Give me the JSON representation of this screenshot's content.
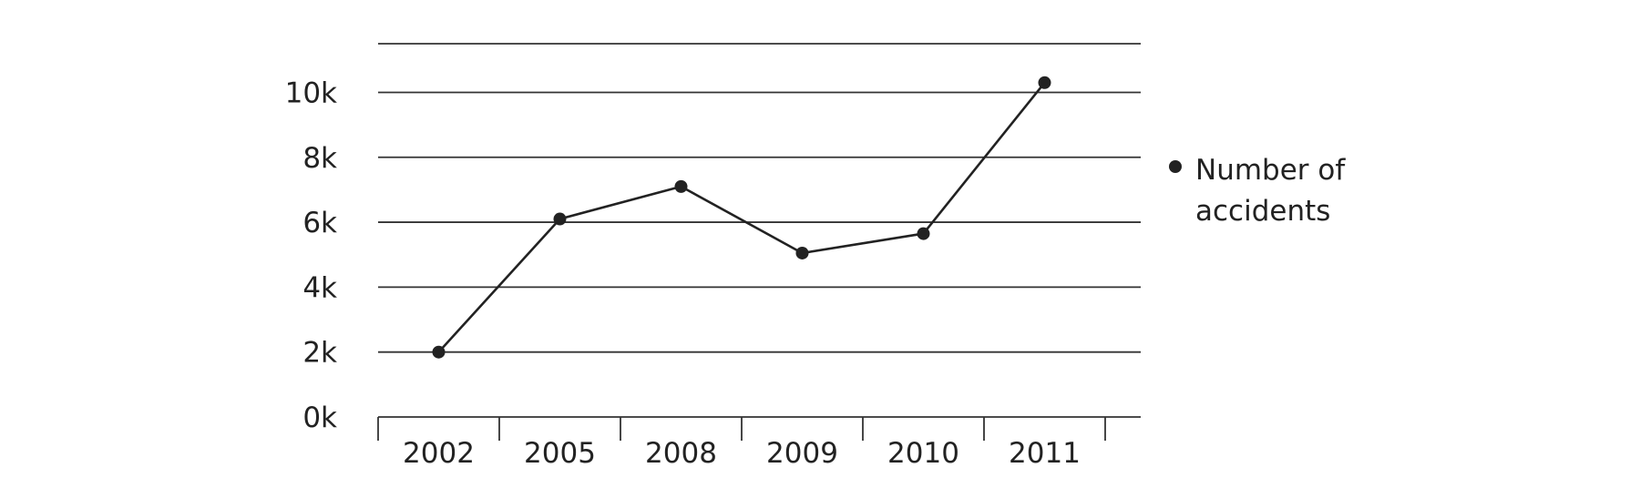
{
  "chart_data": {
    "type": "line",
    "title": "",
    "xlabel": "",
    "ylabel": "",
    "categories": [
      "2002",
      "2005",
      "2008",
      "2009",
      "2010",
      "2011"
    ],
    "y_ticks": [
      0,
      2000,
      4000,
      6000,
      8000,
      10000
    ],
    "y_tick_labels": [
      "0k",
      "2k",
      "4k",
      "6k",
      "8k",
      "10k"
    ],
    "ylim": [
      0,
      11500
    ],
    "grid": true,
    "legend_position": "right",
    "series": [
      {
        "name": "Number of accidents",
        "values": [
          2000,
          6100,
          7100,
          5050,
          5650,
          10300
        ],
        "color": "#222222"
      }
    ]
  }
}
